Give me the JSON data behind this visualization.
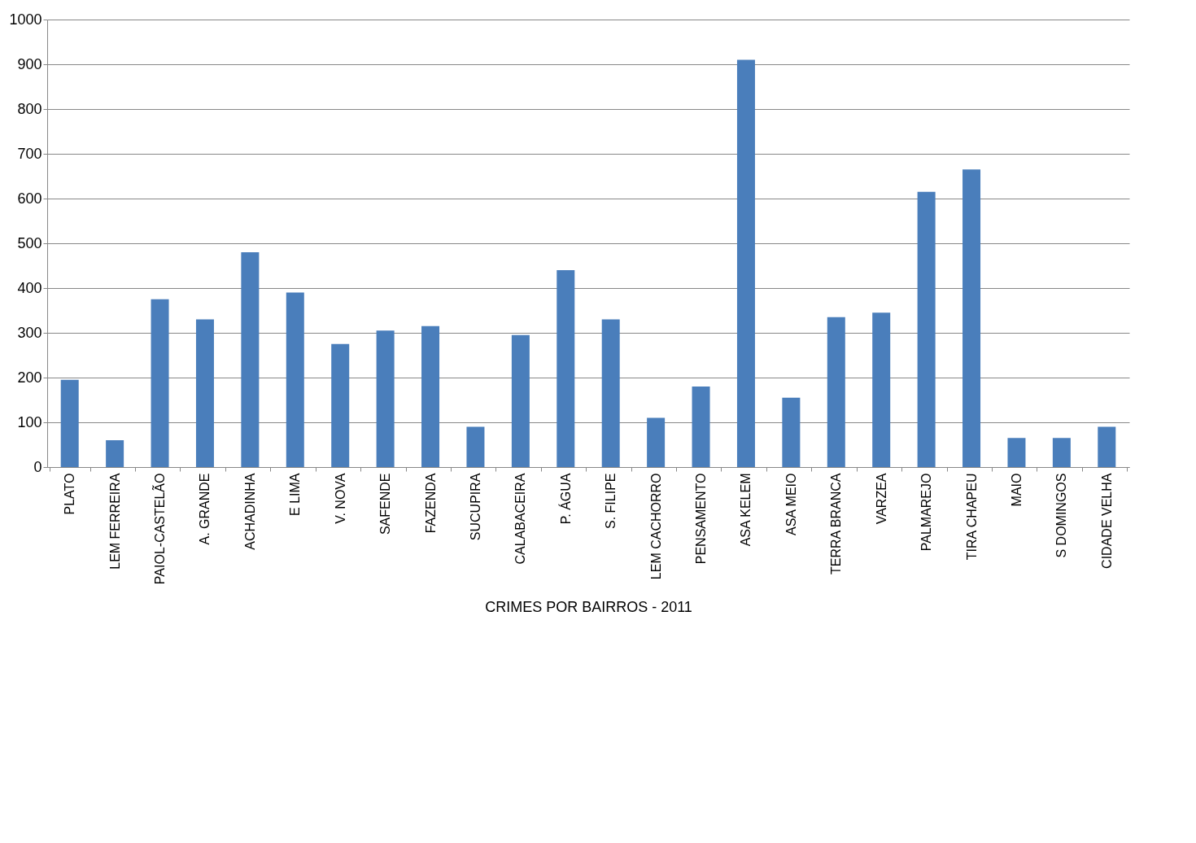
{
  "chart_data": {
    "type": "bar",
    "xlabel": "CRIMES POR BAIRROS - 2011",
    "categories": [
      "PLATO",
      "LEM FERREIRA",
      "PAIOL-CASTELÃO",
      "A. GRANDE",
      "ACHADINHA",
      "E LIMA",
      "V. NOVA",
      "SAFENDE",
      "FAZENDA",
      "SUCUPIRA",
      "CALABACEIRA",
      "P. ÁGUA",
      "S. FILIPE",
      "LEM CACHORRO",
      "PENSAMENTO",
      "ASA KELEM",
      "ASA MEIO",
      "TERRA BRANCA",
      "VARZEA",
      "PALMAREJO",
      "TIRA CHAPEU",
      "MAIO",
      "S DOMINGOS",
      "CIDADE VELHA"
    ],
    "values": [
      195,
      60,
      375,
      330,
      480,
      390,
      275,
      305,
      315,
      90,
      295,
      440,
      330,
      110,
      180,
      910,
      155,
      335,
      345,
      615,
      665,
      65,
      65,
      90
    ],
    "color": "#4a7ebb",
    "ylim": [
      0,
      1000
    ],
    "yticks": [
      0,
      100,
      200,
      300,
      400,
      500,
      600,
      700,
      800,
      900,
      1000
    ],
    "grid": "y"
  }
}
